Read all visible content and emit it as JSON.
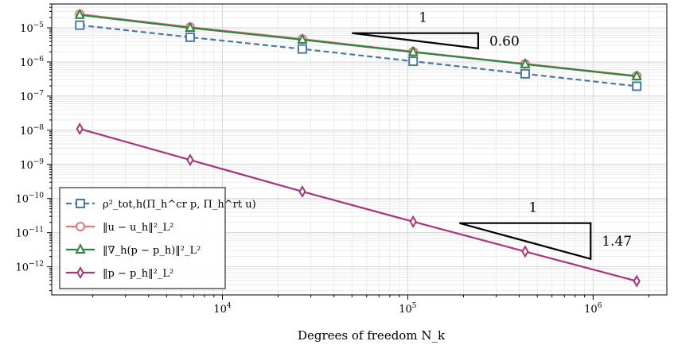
{
  "chart_data": {
    "type": "line",
    "xlabel": "Degrees of freedom N_k",
    "x_scale": "log",
    "y_scale": "log",
    "xlim": [
      1200,
      2500000
    ],
    "ylim": [
      1.5e-13,
      5e-05
    ],
    "grid": true,
    "legend_position": "bottom-left",
    "x_ticks": [
      {
        "value": 10000,
        "base": "10",
        "exp": "4"
      },
      {
        "value": 100000,
        "base": "10",
        "exp": "5"
      },
      {
        "value": 1000000,
        "base": "10",
        "exp": "6"
      }
    ],
    "y_ticks": [
      {
        "value": 1e-05,
        "base": "10",
        "exp": "−5"
      },
      {
        "value": 1e-06,
        "base": "10",
        "exp": "−6"
      },
      {
        "value": 1e-07,
        "base": "10",
        "exp": "−7"
      },
      {
        "value": 1e-08,
        "base": "10",
        "exp": "−8"
      },
      {
        "value": 1e-09,
        "base": "10",
        "exp": "−9"
      },
      {
        "value": 1e-10,
        "base": "10",
        "exp": "−10"
      },
      {
        "value": 1e-11,
        "base": "10",
        "exp": "−11"
      },
      {
        "value": 1e-12,
        "base": "10",
        "exp": "−12"
      }
    ],
    "x": [
      1700,
      6700,
      27000,
      107000,
      430000,
      1720000
    ],
    "series": [
      {
        "name": "ρ²_tot,h(Π_h^cr p, Π_h^rt u)",
        "color": "#4a78a8",
        "marker": "square",
        "dash": true,
        "values": [
          1.2e-05,
          5.3e-06,
          2.4e-06,
          1.05e-06,
          4.5e-07,
          1.95e-07
        ]
      },
      {
        "name": "‖u − u_h‖²_L²",
        "color": "#e8737c",
        "marker": "circle",
        "dash": false,
        "values": [
          2.5e-05,
          1.05e-05,
          4.7e-06,
          2e-06,
          8.8e-07,
          3.9e-07
        ]
      },
      {
        "name": "‖∇_h(p − p_h)‖²_L²",
        "color": "#2e8540",
        "marker": "triangle",
        "dash": false,
        "values": [
          2.4e-05,
          1e-05,
          4.5e-06,
          1.95e-06,
          8.6e-07,
          3.8e-07
        ]
      },
      {
        "name": "‖p − p_h‖²_L²",
        "color": "#a8347c",
        "marker": "diamond",
        "dash": false,
        "values": [
          1.1e-08,
          1.35e-09,
          1.6e-10,
          2.1e-11,
          2.8e-12,
          3.8e-13
        ]
      }
    ],
    "slope_triangles": [
      {
        "x1": 50000,
        "x2": 240000,
        "y_top": 7e-06,
        "y_bottom": 2.5e-06,
        "run_label": "1",
        "rise_label": "0.60"
      },
      {
        "x1": 190000,
        "x2": 970000,
        "y_top": 1.9e-11,
        "y_bottom": 1.7e-12,
        "run_label": "1",
        "rise_label": "1.47"
      }
    ]
  }
}
